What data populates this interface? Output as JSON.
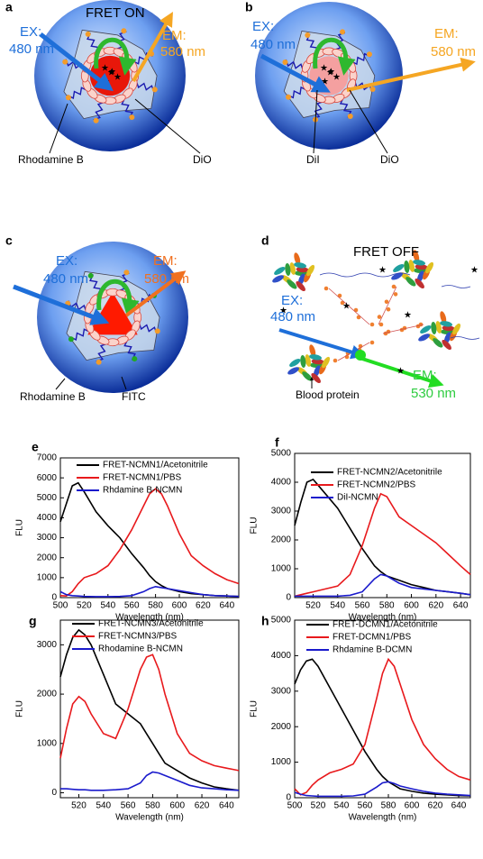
{
  "diagrams": [
    {
      "label": "a",
      "title": "FRET ON",
      "ex_label": "EX:",
      "ex_wavelength": "480 nm",
      "em_label": "EM:",
      "em_wavelength": "580 nm",
      "labels": [
        "Rhodamine B",
        "DiO"
      ]
    },
    {
      "label": "b",
      "ex_label": "EX:",
      "ex_wavelength": "480 nm",
      "em_label": "EM:",
      "em_wavelength": "580 nm",
      "labels": [
        "DiI",
        "DiO"
      ]
    },
    {
      "label": "c",
      "ex_label": "EX:",
      "ex_wavelength": "480 nm",
      "em_label": "EM:",
      "em_wavelength": "580 nm",
      "labels": [
        "Rhodamine B",
        "FITC"
      ]
    },
    {
      "label": "d",
      "title": "FRET OFF",
      "ex_label": "EX:",
      "ex_wavelength": "480 nm",
      "em_label": "EM:",
      "em_wavelength": "530 nm",
      "labels": [
        "Blood protein"
      ]
    }
  ],
  "chart_data": [
    {
      "type": "line",
      "label": "e",
      "x_label": "Wavelength (nm)",
      "y_label": "FLU",
      "x": [
        500,
        505,
        510,
        515,
        520,
        530,
        540,
        550,
        560,
        570,
        575,
        580,
        585,
        590,
        600,
        610,
        620,
        630,
        640,
        650
      ],
      "xlim": [
        500,
        650
      ],
      "xticks": [
        500,
        520,
        540,
        560,
        580,
        600,
        620,
        640
      ],
      "ylim": [
        0,
        7000
      ],
      "yticks": [
        0,
        1000,
        2000,
        3000,
        4000,
        5000,
        6000,
        7000
      ],
      "series": [
        {
          "name": "FRET-NCMN1/Acetonitrile",
          "color": "#000000",
          "values": [
            3800,
            4700,
            5600,
            5750,
            5300,
            4300,
            3600,
            3000,
            2200,
            1500,
            1100,
            800,
            600,
            450,
            300,
            200,
            150,
            100,
            80,
            60
          ]
        },
        {
          "name": "FRET-NCMN1/PBS",
          "color": "#e8191c",
          "values": [
            100,
            80,
            300,
            700,
            1000,
            1200,
            1600,
            2400,
            3400,
            4600,
            5200,
            5450,
            5200,
            4600,
            3200,
            2100,
            1600,
            1200,
            900,
            700
          ]
        },
        {
          "name": "Rhdamine B-NCMN",
          "color": "#1a1acc",
          "values": [
            300,
            150,
            100,
            80,
            60,
            50,
            50,
            60,
            100,
            300,
            450,
            550,
            500,
            450,
            350,
            250,
            150,
            100,
            80,
            60
          ]
        }
      ]
    },
    {
      "type": "line",
      "label": "f",
      "x_label": "Wavelength (nm)",
      "y_label": "FLU",
      "x": [
        505,
        510,
        515,
        520,
        530,
        540,
        550,
        560,
        570,
        575,
        580,
        590,
        600,
        610,
        620,
        630,
        640,
        648
      ],
      "xlim": [
        505,
        648
      ],
      "xticks": [
        520,
        540,
        560,
        580,
        600,
        620,
        640
      ],
      "ylim": [
        0,
        5000
      ],
      "yticks": [
        0,
        1000,
        2000,
        3000,
        4000,
        5000
      ],
      "series": [
        {
          "name": "FRET-NCMN2/Acetonitrile",
          "color": "#000000",
          "values": [
            2500,
            3300,
            4000,
            4100,
            3600,
            3100,
            2400,
            1700,
            1100,
            900,
            750,
            600,
            450,
            350,
            250,
            200,
            150,
            100
          ]
        },
        {
          "name": "FRET-NCMN2/PBS",
          "color": "#e8191c",
          "values": [
            50,
            100,
            150,
            200,
            300,
            400,
            800,
            1800,
            3100,
            3600,
            3500,
            2800,
            2500,
            2200,
            1900,
            1500,
            1100,
            800
          ]
        },
        {
          "name": "DiI-NCMN",
          "color": "#1a1acc",
          "values": [
            50,
            50,
            50,
            50,
            50,
            50,
            80,
            200,
            650,
            800,
            750,
            500,
            350,
            300,
            250,
            200,
            150,
            100
          ]
        }
      ]
    },
    {
      "type": "line",
      "label": "g",
      "x_label": "Wavelength (nm)",
      "y_label": "FLU",
      "x": [
        505,
        510,
        515,
        520,
        525,
        530,
        540,
        550,
        560,
        570,
        575,
        580,
        585,
        590,
        600,
        610,
        620,
        630,
        640,
        650
      ],
      "xlim": [
        505,
        650
      ],
      "xticks": [
        520,
        540,
        560,
        580,
        600,
        620,
        640
      ],
      "ylim": [
        -100,
        3500
      ],
      "yticks": [
        0,
        1000,
        2000,
        3000
      ],
      "series": [
        {
          "name": "FRET-NCMN3/Acetonitrile",
          "color": "#000000",
          "values": [
            2350,
            2800,
            3150,
            3300,
            3200,
            3000,
            2400,
            1800,
            1600,
            1400,
            1200,
            1000,
            800,
            600,
            450,
            300,
            200,
            120,
            80,
            50
          ]
        },
        {
          "name": "FRET-NCMN3/PBS",
          "color": "#e8191c",
          "values": [
            700,
            1300,
            1800,
            1950,
            1850,
            1600,
            1200,
            1100,
            1700,
            2500,
            2750,
            2800,
            2500,
            2000,
            1200,
            800,
            650,
            550,
            500,
            450
          ]
        },
        {
          "name": "Rhodamine B-NCMN",
          "color": "#1a1acc",
          "values": [
            80,
            80,
            70,
            60,
            60,
            50,
            50,
            60,
            80,
            200,
            350,
            420,
            400,
            350,
            250,
            150,
            100,
            80,
            60,
            50
          ]
        }
      ]
    },
    {
      "type": "line",
      "label": "h",
      "x_label": "Wavelength (nm)",
      "y_label": "FLU",
      "x": [
        500,
        505,
        510,
        515,
        520,
        530,
        540,
        550,
        560,
        570,
        575,
        580,
        585,
        590,
        600,
        610,
        620,
        630,
        640,
        650
      ],
      "xlim": [
        500,
        650
      ],
      "xticks": [
        500,
        520,
        540,
        560,
        580,
        600,
        620,
        640
      ],
      "ylim": [
        0,
        5000
      ],
      "yticks": [
        0,
        1000,
        2000,
        3000,
        4000,
        5000
      ],
      "series": [
        {
          "name": "FRET-DCMN1/Acetonitrile",
          "color": "#000000",
          "values": [
            3200,
            3600,
            3850,
            3900,
            3700,
            3100,
            2500,
            1900,
            1300,
            800,
            600,
            450,
            350,
            250,
            180,
            130,
            100,
            80,
            60,
            50
          ]
        },
        {
          "name": "FRET-DCMN1/PBS",
          "color": "#e8191c",
          "values": [
            250,
            80,
            150,
            350,
            500,
            700,
            800,
            950,
            1500,
            2800,
            3500,
            3900,
            3700,
            3200,
            2200,
            1500,
            1100,
            800,
            600,
            500
          ]
        },
        {
          "name": "Rhdamine B-DCMN",
          "color": "#1a1acc",
          "values": [
            150,
            100,
            60,
            50,
            40,
            40,
            40,
            50,
            100,
            300,
            420,
            450,
            400,
            330,
            250,
            180,
            130,
            100,
            80,
            60
          ]
        }
      ]
    }
  ]
}
